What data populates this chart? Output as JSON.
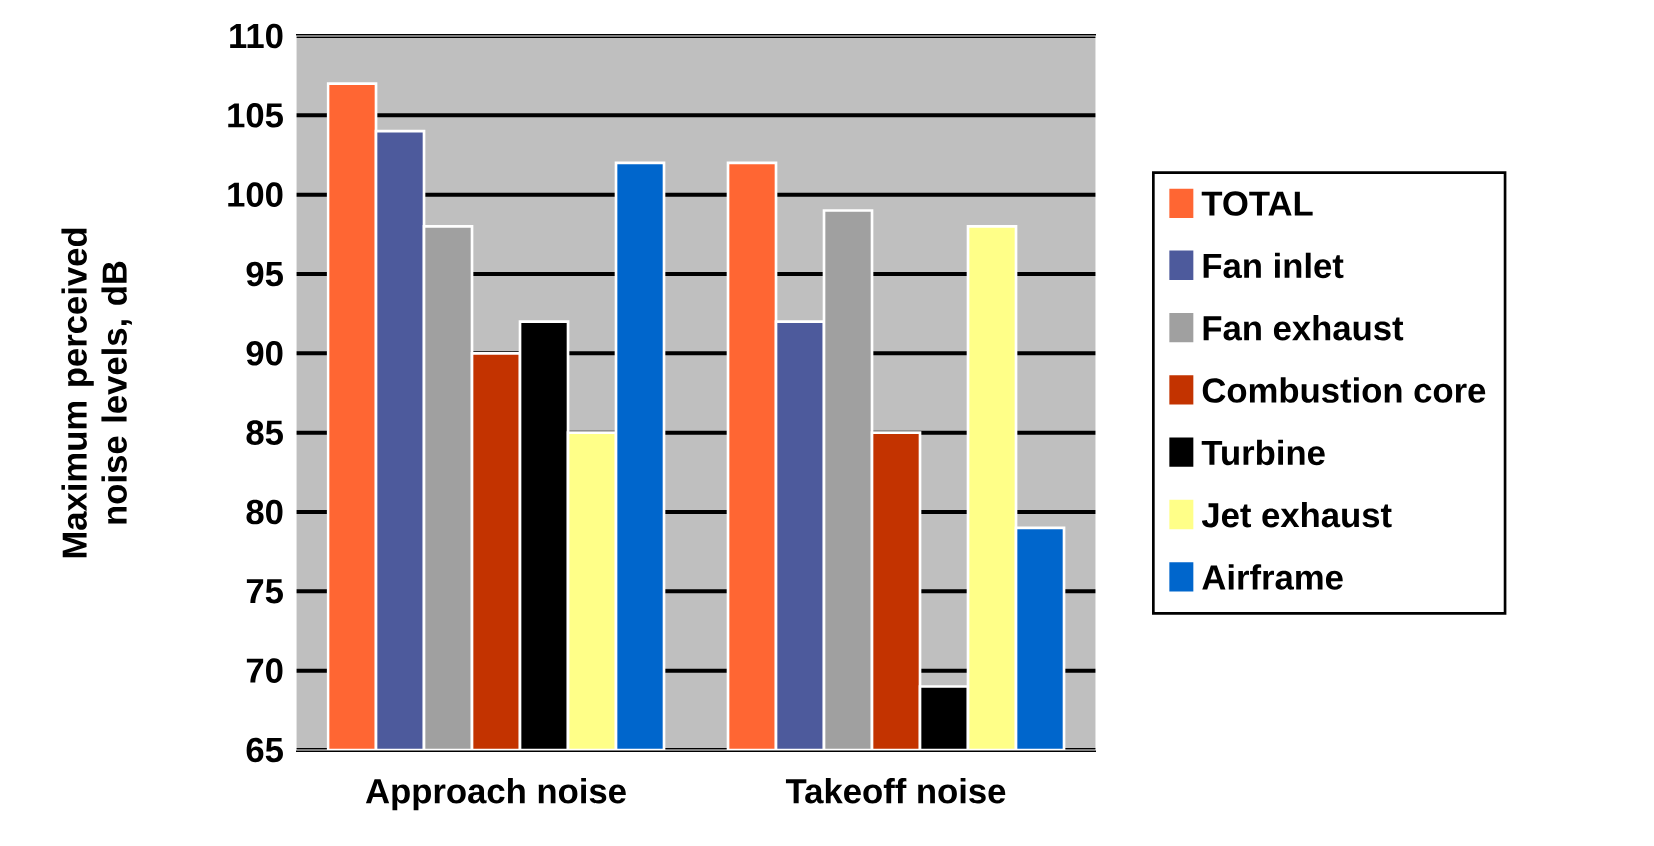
{
  "chart_data": {
    "type": "bar",
    "ylabel": "Maximum perceived noise levels, dB",
    "categories": [
      "Approach noise",
      "Takeoff noise"
    ],
    "series": [
      {
        "name": "TOTAL",
        "color": "#ff6633",
        "values": [
          107,
          102
        ]
      },
      {
        "name": "Fan inlet",
        "color": "#4d5a9c",
        "values": [
          104,
          92
        ]
      },
      {
        "name": "Fan exhaust",
        "color": "#a0a0a0",
        "values": [
          98,
          99
        ]
      },
      {
        "name": "Combustion core",
        "color": "#c33300",
        "values": [
          90,
          85
        ]
      },
      {
        "name": "Turbine",
        "color": "#000000",
        "values": [
          92,
          69
        ]
      },
      {
        "name": "Jet exhaust",
        "color": "#ffff88",
        "values": [
          85,
          98
        ]
      },
      {
        "name": "Airframe",
        "color": "#0066cc",
        "values": [
          102,
          79
        ]
      }
    ],
    "ylim": [
      65,
      110
    ],
    "yticks": [
      65,
      70,
      75,
      80,
      85,
      90,
      95,
      100,
      105,
      110
    ],
    "grid": "y",
    "legend": "right"
  }
}
